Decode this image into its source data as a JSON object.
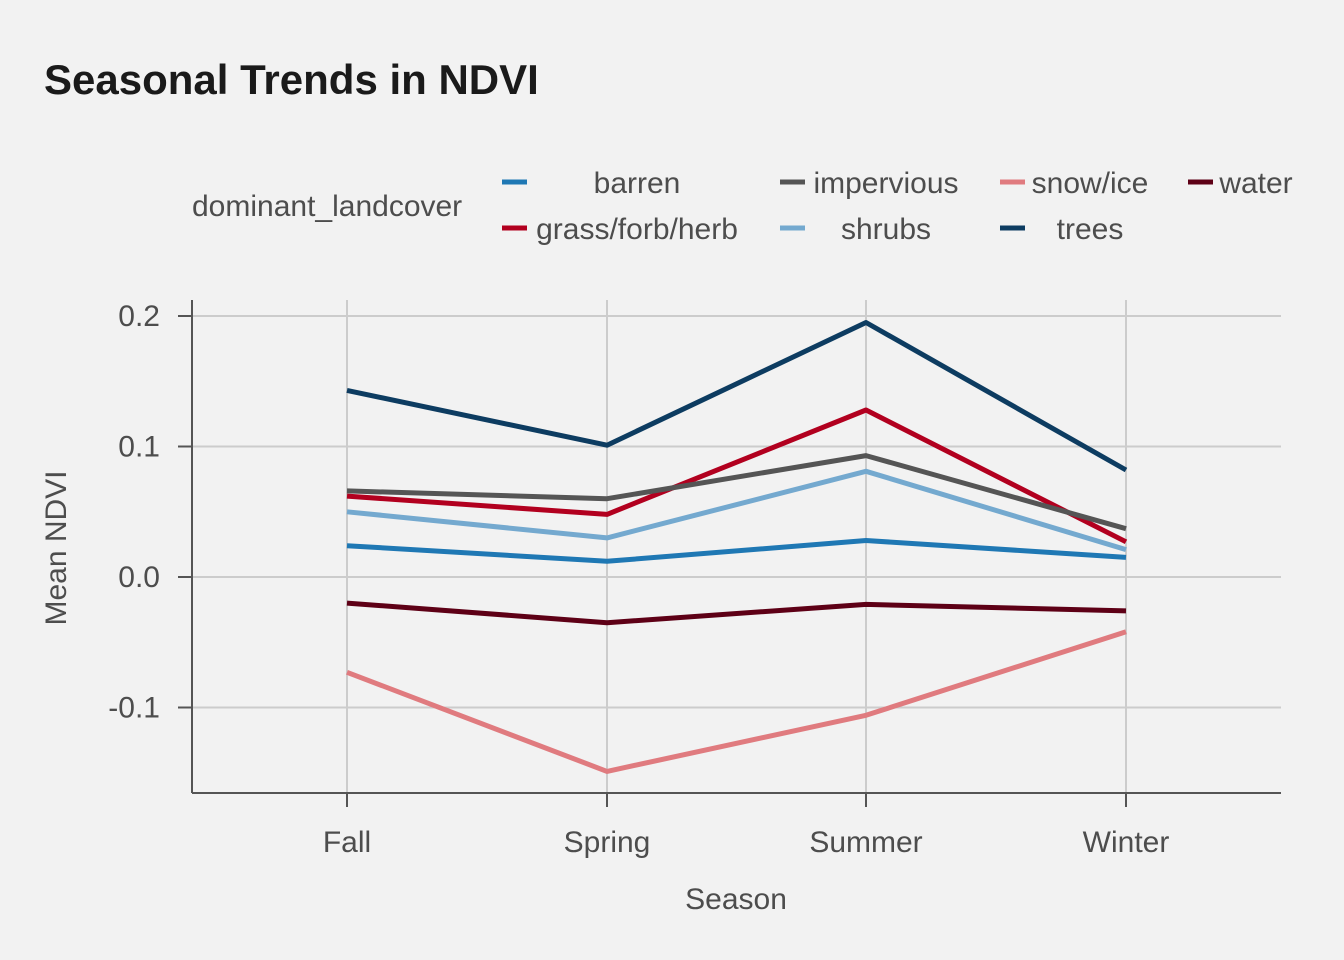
{
  "chart_data": {
    "type": "line",
    "title": "Seasonal Trends in NDVI",
    "xlabel": "Season",
    "ylabel": "Mean NDVI",
    "categories": [
      "Fall",
      "Spring",
      "Summer",
      "Winter"
    ],
    "ylim": [
      -0.165,
      0.21
    ],
    "yticks": [
      0.2,
      0.1,
      0.0,
      -0.1
    ],
    "ytick_labels": [
      "0.2",
      "0.1",
      "0.0",
      "-0.1"
    ],
    "grid": true,
    "legend": {
      "title": "dominant_landcover",
      "placement": "top"
    },
    "series": [
      {
        "name": "barren",
        "color": "#1f78b4",
        "values": [
          0.024,
          0.012,
          0.028,
          0.015
        ]
      },
      {
        "name": "grass/forb/herb",
        "color": "#b2001f",
        "values": [
          0.062,
          0.048,
          0.128,
          0.027
        ]
      },
      {
        "name": "impervious",
        "color": "#555555",
        "values": [
          0.066,
          0.06,
          0.093,
          0.037
        ]
      },
      {
        "name": "shrubs",
        "color": "#74a9cf",
        "values": [
          0.05,
          0.03,
          0.081,
          0.021
        ]
      },
      {
        "name": "snow/ice",
        "color": "#e07b7f",
        "values": [
          -0.073,
          -0.149,
          -0.106,
          -0.042
        ]
      },
      {
        "name": "trees",
        "color": "#0d3c61",
        "values": [
          0.143,
          0.101,
          0.195,
          0.082
        ]
      },
      {
        "name": "water",
        "color": "#5e0016",
        "values": [
          -0.02,
          -0.035,
          -0.021,
          -0.026
        ]
      }
    ]
  }
}
